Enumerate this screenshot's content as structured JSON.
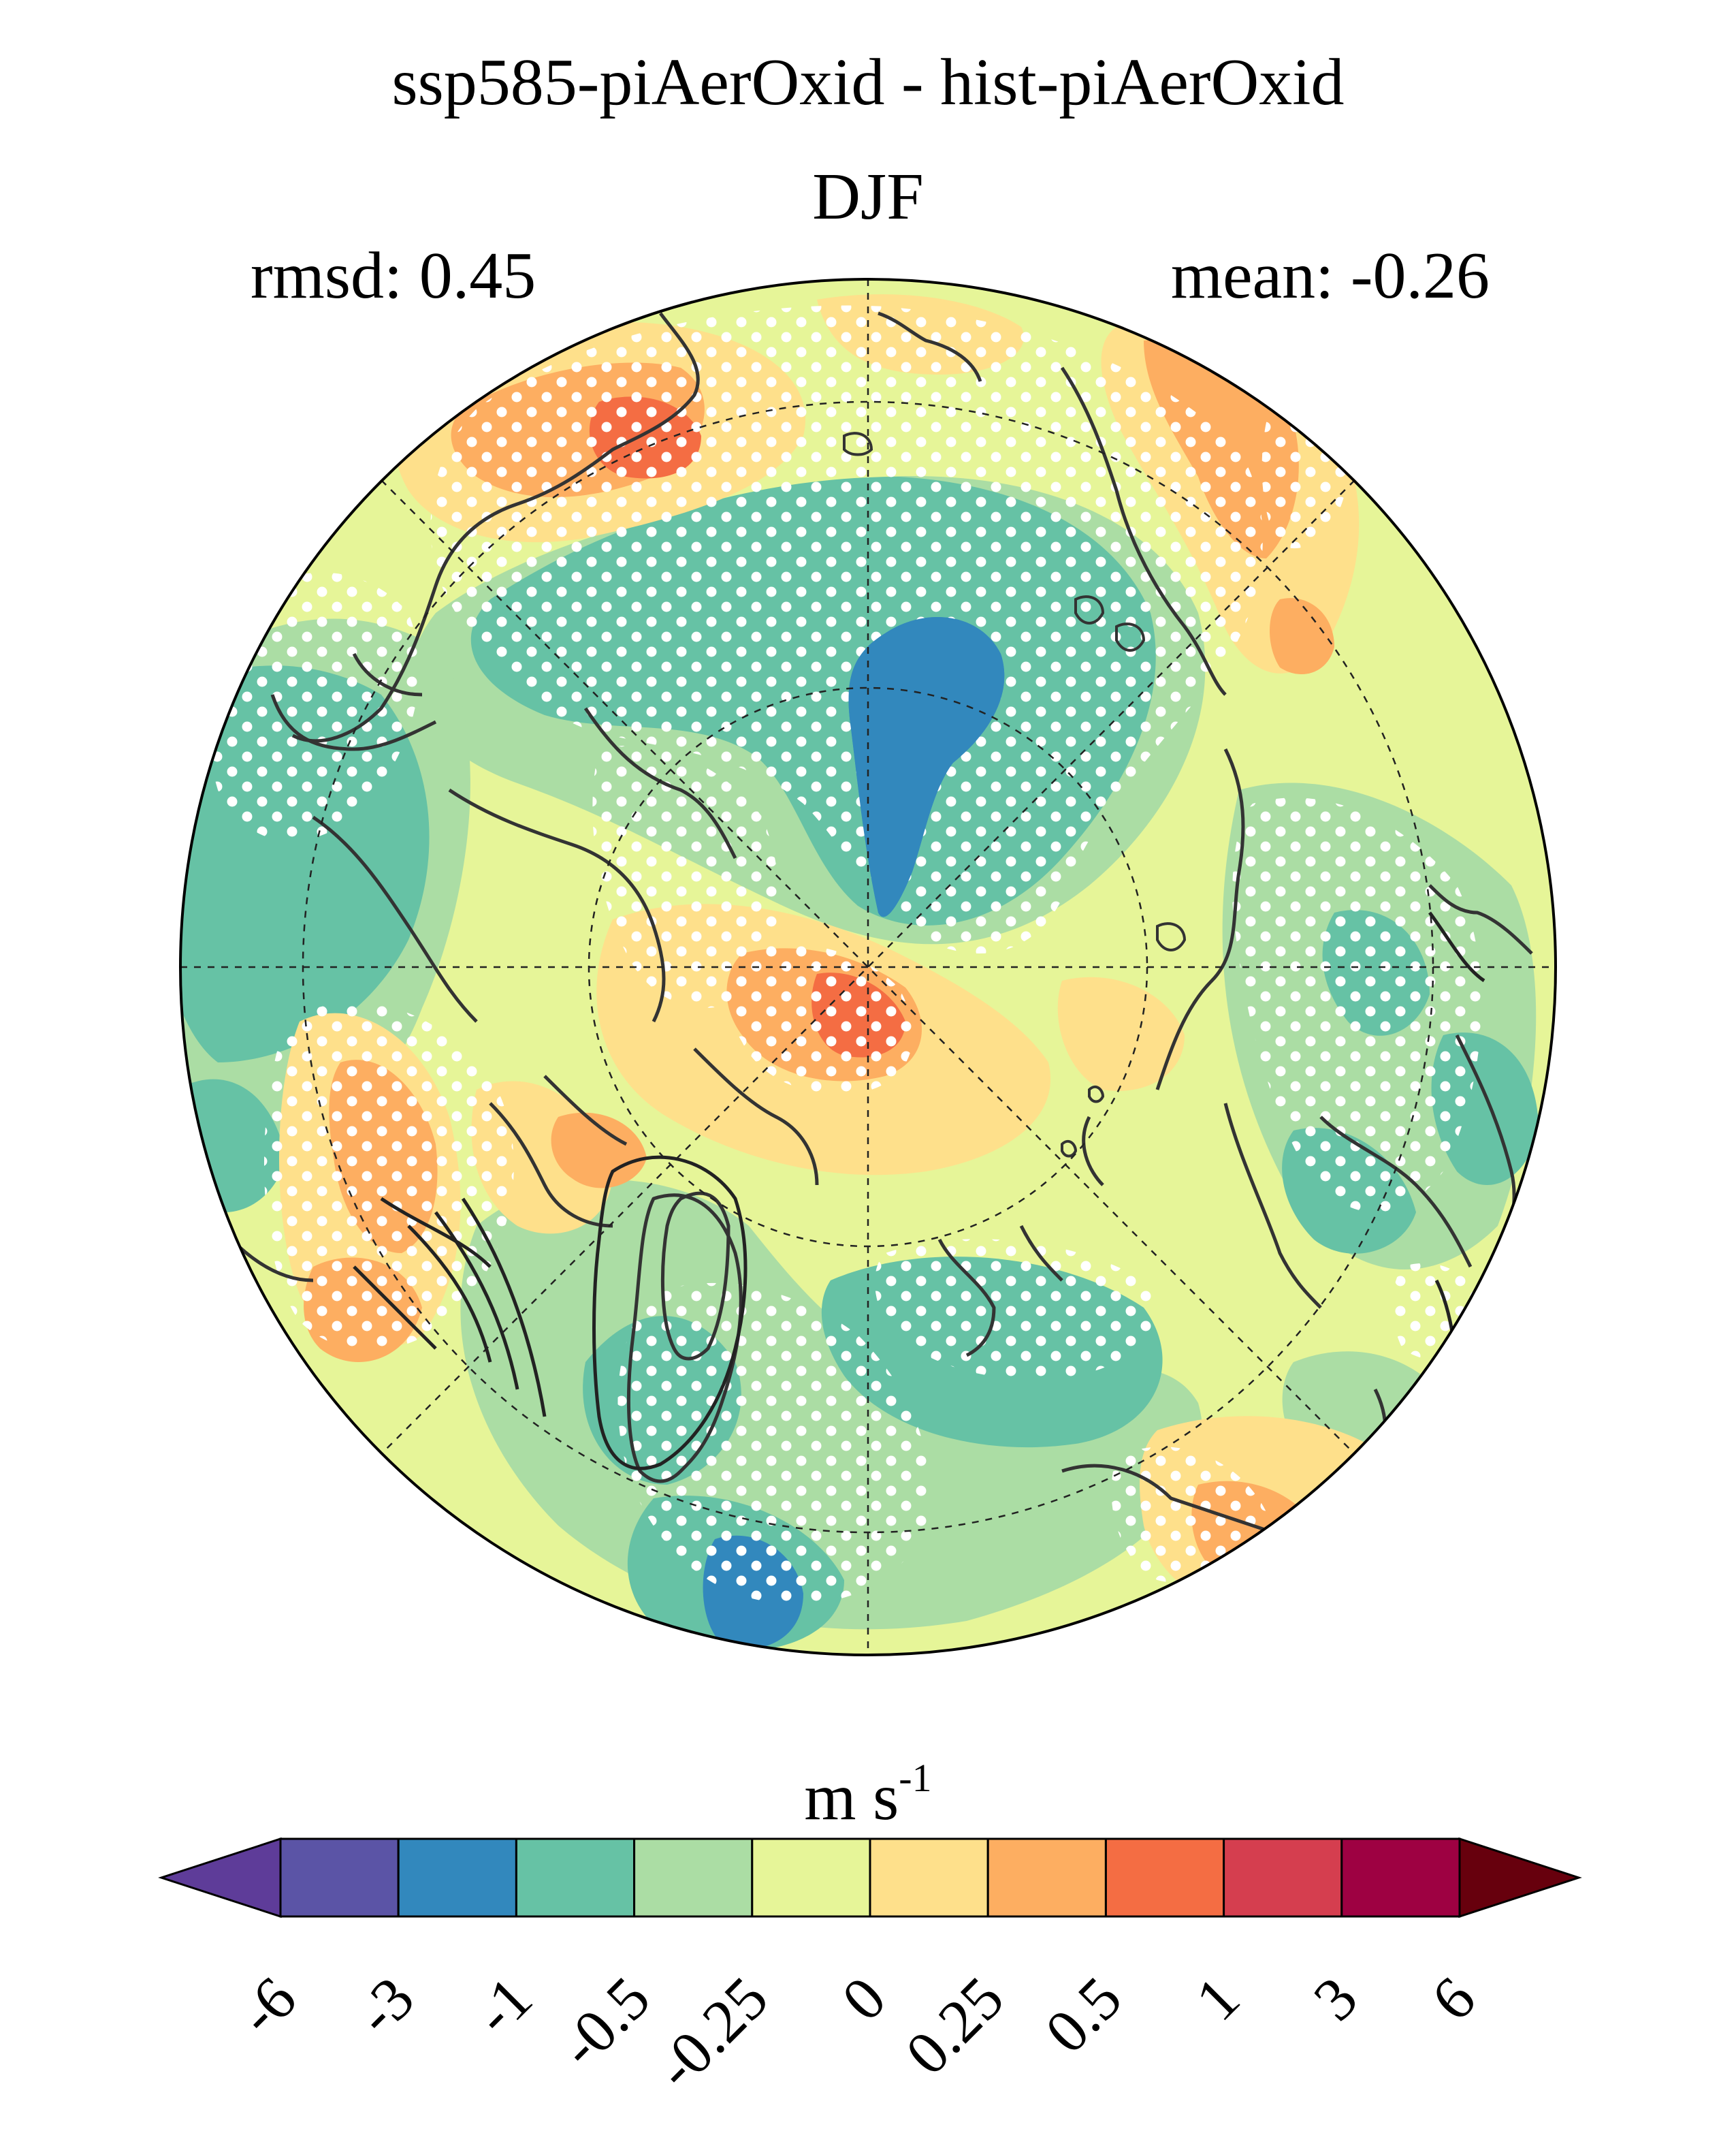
{
  "figure": {
    "title": "ssp585-piAerOxid - hist-piAerOxid",
    "season": "DJF",
    "rmsd_label": "rmsd: 0.45",
    "mean_label": "mean: -0.26",
    "rmsd": 0.45,
    "mean": -0.26
  },
  "map": {
    "projection": "north-polar-stereographic",
    "gridlines": "dashed",
    "stippling": "white-dots",
    "coastlines": "dark-gray"
  },
  "colorbar": {
    "units_base": "m s",
    "units_exp": "-1",
    "extend": "both",
    "tick_labels": [
      "-6",
      "-3",
      "-1",
      "-0.5",
      "-0.25",
      "0",
      "0.25",
      "0.5",
      "1",
      "3",
      "6"
    ],
    "colors": [
      "#5e3c99",
      "#5b54a6",
      "#3288bd",
      "#66c2a5",
      "#abdda4",
      "#e6f598",
      "#fee08b",
      "#fdae61",
      "#f46d43",
      "#d53e4f",
      "#9e0142",
      "#67000d"
    ]
  }
}
